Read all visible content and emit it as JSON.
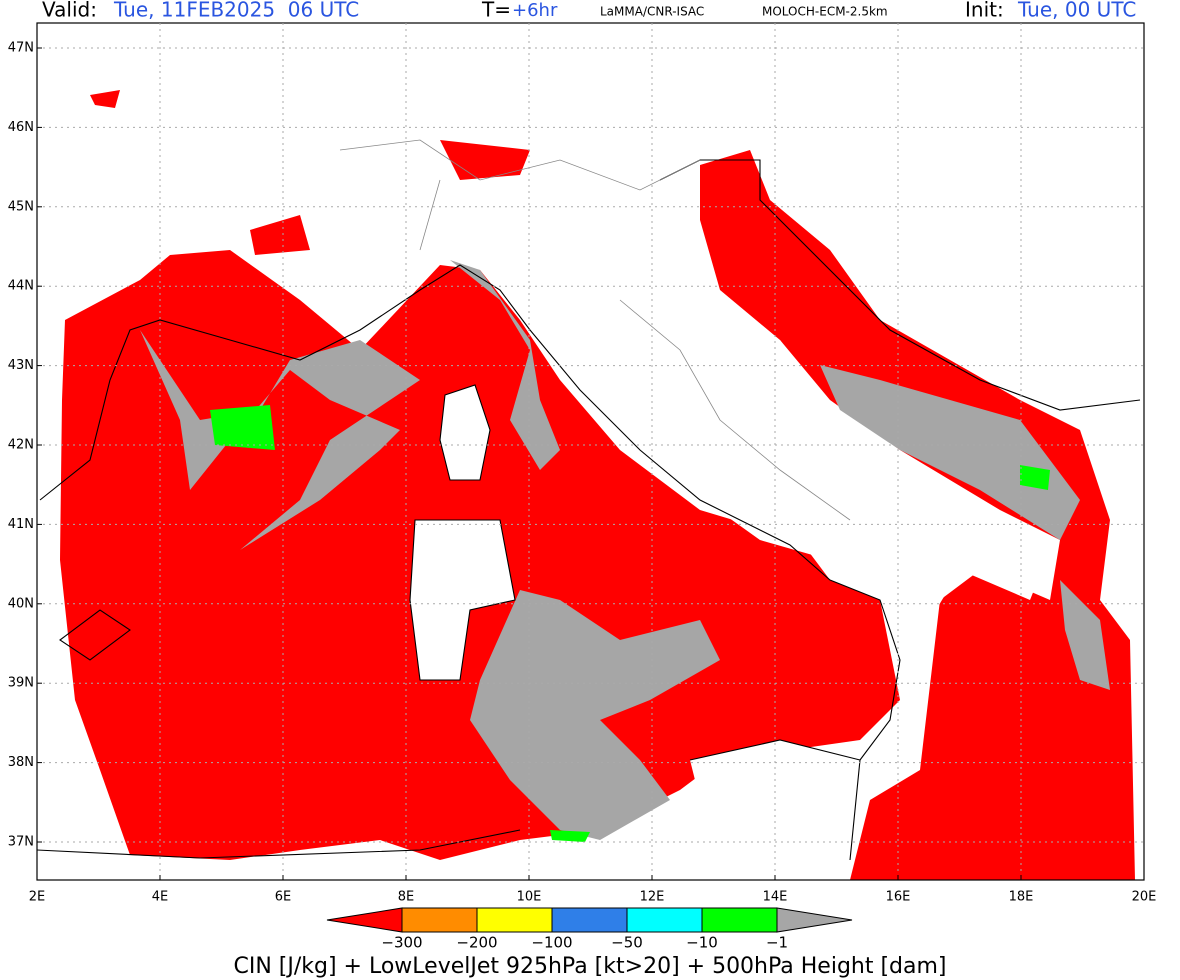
{
  "header": {
    "valid_label": "Valid:",
    "valid_value": "Tue, 11FEB2025  06 UTC",
    "t_label": "T=",
    "t_value": "+6hr",
    "source": "LaMMA/CNR-ISAC",
    "model": "MOLOCH-ECM-2.5km",
    "init_label": "Init:",
    "init_value": "Tue, 00 UTC"
  },
  "map": {
    "lat_labels": [
      "47N",
      "46N",
      "45N",
      "44N",
      "43N",
      "42N",
      "41N",
      "40N",
      "39N",
      "38N",
      "37N"
    ],
    "lon_labels": [
      "2E",
      "4E",
      "6E",
      "8E",
      "10E",
      "12E",
      "14E",
      "16E",
      "18E",
      "20E"
    ]
  },
  "colorbar": {
    "colors": [
      "#ff0000",
      "#ff8c00",
      "#ffff00",
      "#2f7fe8",
      "#00ffff",
      "#00ff00",
      "#a6a6a6"
    ],
    "labels": [
      "−300",
      "−200",
      "−100",
      "−50",
      "−10",
      "−1"
    ]
  },
  "caption": "CIN [J/kg] + LowLevelJet 925hPa [kt>20] + 500hPa Height [dam]"
}
